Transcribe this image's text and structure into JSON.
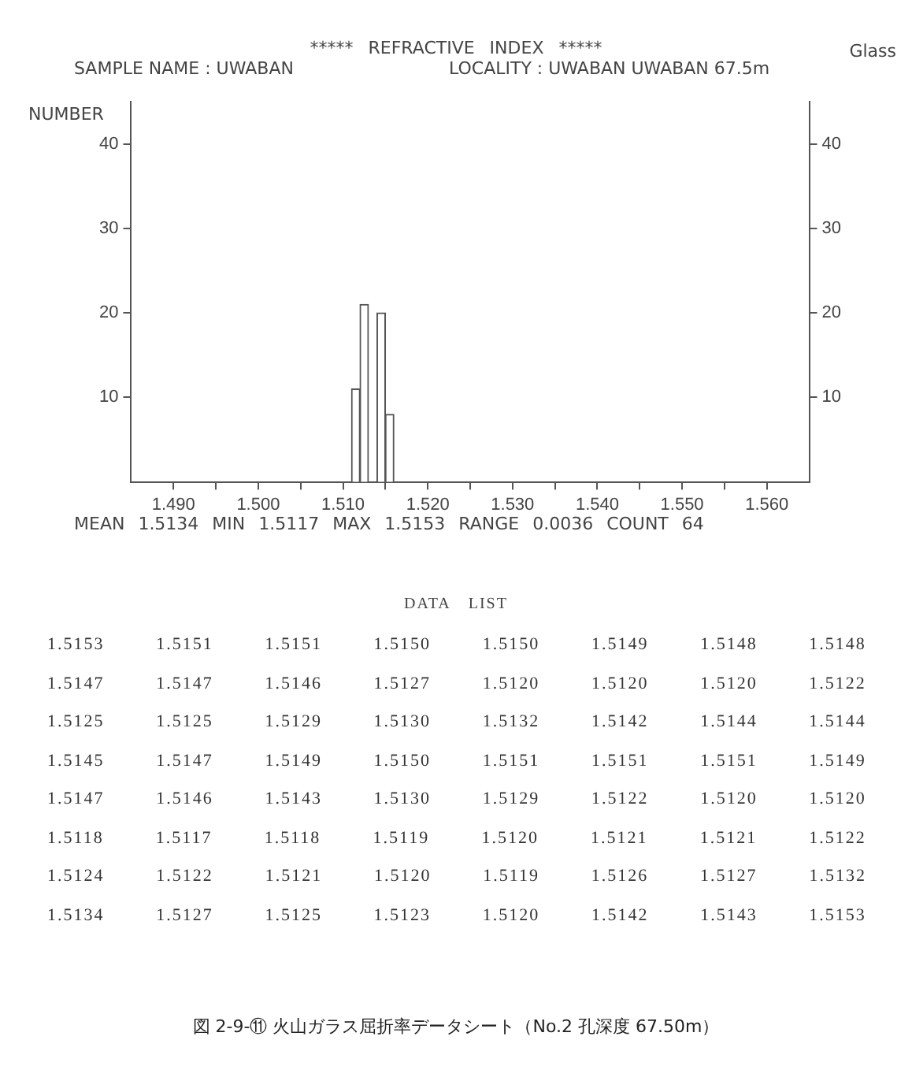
{
  "chart_data": {
    "type": "histogram",
    "title": "***** REFRACTIVE INDEX *****",
    "subtitle": "SAMPLE NAME : UWABAN",
    "ylabel": "NUMBER",
    "annotations": [
      "Glass",
      "LOCALITY : UWABAN UWABAN 67.5m",
      "MEAN 1.5134 MIN 1.5117 MAX 1.5153 RANGE 0.0036 COUNT 64",
      "DATA LIST",
      "1.5153 1.5151 1.5151 1.5150 1.5150 1.5149 1.5148 1.5148",
      "1.5147 1.5147 1.5146 1.5127 1.5120 1.5120 1.5120 1.5122",
      "1.5125 1.5125 1.5129 1.5130 1.5132 1.5142 1.5144 1.5144",
      "1.5145 1.5147 1.5149 1.5150 1.5151 1.5151 1.5151 1.5149",
      "1.5147 1.5146 1.5143 1.5130 1.5129 1.5122 1.5120 1.5120",
      "1.5118 1.5117 1.5118 1.5119 1.5120 1.5121 1.5121 1.5122",
      "1.5124 1.5122 1.5121 1.5120 1.5119 1.5126 1.5127 1.5132",
      "1.5134 1.5127 1.5125 1.5123 1.5120 1.5142 1.5143 1.5153",
      "図 2-9-⑪ 火山ガラス屈折率データシート（No.2 孔深度 67.50m）"
    ],
    "bins": [
      1.511,
      1.512,
      1.513,
      1.514,
      1.515,
      1.516
    ],
    "values": [
      11,
      21,
      0,
      20,
      8
    ],
    "color": "#ffffff",
    "xlim": [
      1.485,
      1.565
    ],
    "xticks": [
      {
        "value": 1.49,
        "label": "1.490"
      },
      {
        "value": 1.495,
        "label": null
      },
      {
        "value": 1.5,
        "label": "1.500"
      },
      {
        "value": 1.505,
        "label": null
      },
      {
        "value": 1.51,
        "label": "1.510"
      },
      {
        "value": 1.515,
        "label": null
      },
      {
        "value": 1.52,
        "label": "1.520"
      },
      {
        "value": 1.525,
        "label": null
      },
      {
        "value": 1.53,
        "label": "1.530"
      },
      {
        "value": 1.535,
        "label": null
      },
      {
        "value": 1.54,
        "label": "1.540"
      },
      {
        "value": 1.545,
        "label": null
      },
      {
        "value": 1.55,
        "label": "1.550"
      },
      {
        "value": 1.555,
        "label": null
      },
      {
        "value": 1.56,
        "label": "1.560"
      }
    ],
    "ylim": [
      0,
      45
    ],
    "yticks": [
      10,
      20,
      30,
      40
    ],
    "y2lim": [
      0,
      45
    ],
    "y2ticks": [
      10,
      20,
      30,
      40
    ],
    "grid": false
  }
}
